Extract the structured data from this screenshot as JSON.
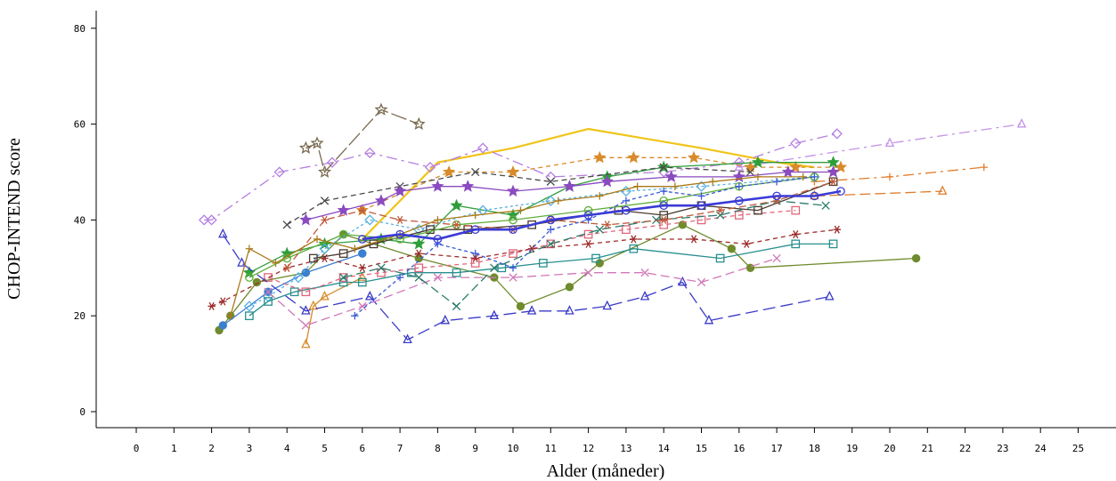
{
  "chart_data": {
    "type": "line",
    "title": "",
    "xlabel": "Alder (måneder)",
    "ylabel": "CHOP-INTEND score",
    "xlim": [
      -1,
      26
    ],
    "ylim": [
      -3,
      83
    ],
    "xticks": [
      0,
      1,
      2,
      3,
      4,
      5,
      6,
      7,
      8,
      9,
      10,
      11,
      12,
      13,
      14,
      15,
      16,
      17,
      18,
      19,
      20,
      21,
      22,
      23,
      24,
      25
    ],
    "yticks": [
      0,
      20,
      40,
      60,
      80
    ],
    "grid": false,
    "legend": "none",
    "mean_line": {
      "color": "#3b3bd6",
      "x": [
        6.0,
        7.0,
        8.0,
        9.0,
        10.0,
        11.0,
        12.0,
        13.0,
        14.0,
        15.0,
        16.0,
        17.0,
        18.0,
        18.7
      ],
      "y": [
        36,
        37,
        36,
        38,
        38,
        40,
        41,
        42,
        43,
        43,
        44,
        45,
        45,
        46
      ]
    },
    "series": [
      {
        "color": "#f0c419",
        "marker": "none",
        "dash": "",
        "x": [
          6.0,
          8.0,
          10.0,
          12.0,
          15.0,
          17.0,
          18.0
        ],
        "y": [
          36,
          52,
          55,
          59,
          55,
          52,
          51
        ]
      },
      {
        "color": "#b47ee0",
        "marker": "diamond",
        "dash": "12,5,3,5",
        "x": [
          1.8,
          2.0,
          3.8,
          5.2,
          6.2,
          7.8,
          9.2,
          11.0,
          14.0,
          16.0,
          17.5,
          18.6
        ],
        "y": [
          40,
          40,
          50,
          52,
          54,
          51,
          55,
          49,
          50,
          52,
          56,
          58
        ]
      },
      {
        "color": "#c493e8",
        "marker": "tri-up",
        "dash": "12,5,3,5",
        "x": [
          16.0,
          20.0,
          23.5
        ],
        "y": [
          51,
          56,
          60
        ]
      },
      {
        "color": "#7a6a50",
        "marker": "star-open",
        "dash": "18,4",
        "x": [
          4.5,
          4.8,
          5.0,
          6.5,
          7.5
        ],
        "y": [
          55,
          56,
          50,
          63,
          60
        ]
      },
      {
        "color": "#d98a2a",
        "marker": "star-filled",
        "dash": "5,4",
        "x": [
          6.0,
          8.3,
          10.0,
          12.3,
          13.2,
          14.8,
          16.3,
          17.5,
          18.7
        ],
        "y": [
          42,
          50,
          50,
          53,
          53,
          53,
          51,
          51,
          51
        ]
      },
      {
        "color": "#d98a2a",
        "marker": "tri-up",
        "dash": "",
        "x": [
          4.5,
          4.7,
          5.0,
          6.0
        ],
        "y": [
          14,
          22,
          24,
          28
        ]
      },
      {
        "color": "#e07b2a",
        "marker": "plus",
        "dash": "12,5,3,5",
        "x": [
          18.0,
          20.0,
          22.5
        ],
        "y": [
          48,
          49,
          51
        ]
      },
      {
        "color": "#e07b2a",
        "marker": "tri-up",
        "dash": "12,5",
        "x": [
          18.0,
          21.4
        ],
        "y": [
          45,
          46
        ]
      },
      {
        "color": "#2f9e3a",
        "marker": "star-filled",
        "dash": "",
        "x": [
          3.0,
          4.0,
          5.0,
          6.5,
          7.5,
          8.5,
          10.0,
          11.5,
          12.5,
          14.0,
          16.5,
          18.5
        ],
        "y": [
          29,
          33,
          35,
          36,
          35,
          43,
          41,
          47,
          49,
          51,
          52,
          52
        ]
      },
      {
        "color": "#6f8b2d",
        "marker": "circle-filled",
        "dash": "",
        "x": [
          2.2,
          2.5,
          3.2,
          4.5,
          5.5,
          7.5,
          9.5,
          10.2,
          11.5,
          12.3,
          14.5,
          15.8,
          16.3,
          20.7
        ],
        "y": [
          17,
          20,
          27,
          29,
          37,
          32,
          28,
          22,
          26,
          31,
          39,
          34,
          30,
          32
        ]
      },
      {
        "color": "#4a4a4a",
        "marker": "x",
        "dash": "6,4",
        "x": [
          4.0,
          5.0,
          7.0,
          9.0,
          11.0,
          14.0,
          16.3
        ],
        "y": [
          39,
          44,
          47,
          50,
          48,
          51,
          50
        ]
      },
      {
        "color": "#3a7fd0",
        "marker": "circle-filled",
        "dash": "",
        "x": [
          2.3,
          3.5,
          4.5,
          6.0
        ],
        "y": [
          18,
          25,
          29,
          33
        ]
      },
      {
        "color": "#56b0e0",
        "marker": "diamond",
        "dash": "3,3",
        "x": [
          3.0,
          3.5,
          4.3,
          5.0,
          6.2,
          7.5,
          9.2,
          11.0,
          13.0,
          15.0,
          18.0
        ],
        "y": [
          22,
          24,
          28,
          34,
          40,
          38,
          42,
          44,
          46,
          47,
          49
        ]
      },
      {
        "color": "#2a8f8f",
        "marker": "square",
        "dash": "",
        "x": [
          3.0,
          3.5,
          4.2,
          5.5,
          6.0,
          7.3,
          8.5,
          9.7,
          10.8,
          12.2,
          13.2,
          15.5,
          17.5,
          18.5
        ],
        "y": [
          20,
          23,
          25,
          27,
          27,
          29,
          29,
          30,
          31,
          32,
          34,
          32,
          35,
          35
        ]
      },
      {
        "color": "#e0667a",
        "marker": "square",
        "dash": "5,4",
        "x": [
          3.5,
          4.5,
          5.5,
          6.5,
          7.5,
          9.0,
          10.0,
          11.0,
          12.0,
          13.0,
          14.0,
          15.0,
          16.0,
          17.5
        ],
        "y": [
          28,
          25,
          28,
          29,
          30,
          31,
          33,
          35,
          37,
          38,
          39,
          40,
          41,
          42
        ]
      },
      {
        "color": "#9e2b2b",
        "marker": "star-asterisk",
        "dash": "5,4",
        "x": [
          2.0,
          2.3,
          4.0,
          5.0,
          6.0,
          7.5,
          9.0,
          10.5,
          12.0,
          13.2,
          14.8,
          16.2,
          17.5,
          18.6
        ],
        "y": [
          22,
          23,
          30,
          32,
          30,
          33,
          32,
          34,
          35,
          36,
          36,
          35,
          37,
          38
        ]
      },
      {
        "color": "#3a3ac8",
        "marker": "tri-up",
        "dash": "14,6",
        "x": [
          2.3,
          2.8,
          4.5,
          6.2,
          7.2,
          8.2,
          9.5,
          10.5,
          11.5,
          12.5,
          13.5,
          14.5,
          15.2,
          18.4
        ],
        "y": [
          37,
          31,
          21,
          24,
          15,
          19,
          20,
          21,
          21,
          22,
          24,
          27,
          19,
          24
        ]
      },
      {
        "color": "#d078b8",
        "marker": "x",
        "dash": "10,5",
        "x": [
          3.5,
          4.5,
          6.0,
          8.0,
          10.0,
          12.0,
          13.5,
          15.0,
          17.0
        ],
        "y": [
          25,
          18,
          22,
          28,
          28,
          29,
          29,
          27,
          32
        ]
      },
      {
        "color": "#4a3a30",
        "marker": "square",
        "dash": "",
        "x": [
          4.7,
          5.5,
          6.3,
          7.8,
          8.8,
          10.5,
          12.8,
          14.0,
          15.0,
          16.5,
          18.5
        ],
        "y": [
          32,
          33,
          35,
          38,
          38,
          39,
          42,
          41,
          43,
          42,
          48
        ]
      },
      {
        "color": "#2a7a6a",
        "marker": "x",
        "dash": "10,5",
        "x": [
          5.5,
          6.5,
          7.5,
          8.5,
          9.5,
          11.0,
          12.3,
          13.8,
          15.5,
          17.0,
          18.3
        ],
        "y": [
          28,
          30,
          28,
          22,
          30,
          35,
          38,
          40,
          41,
          44,
          43
        ]
      },
      {
        "color": "#8a4ac0",
        "marker": "star-filled",
        "dash": "",
        "x": [
          4.5,
          5.5,
          6.5,
          7.0,
          8.0,
          8.8,
          10.0,
          11.5,
          12.5,
          14.2,
          16.0,
          17.3,
          18.5
        ],
        "y": [
          40,
          42,
          44,
          46,
          47,
          47,
          46,
          47,
          48,
          49,
          49,
          50,
          50
        ]
      },
      {
        "color": "#5fae3a",
        "marker": "circle-open",
        "dash": "",
        "x": [
          3.0,
          4.0,
          5.5,
          7.0,
          8.5,
          10.0,
          12.0,
          14.0,
          16.0,
          18.0
        ],
        "y": [
          28,
          32,
          37,
          36,
          39,
          40,
          42,
          44,
          47,
          49
        ]
      },
      {
        "color": "#c05a3a",
        "marker": "star-asterisk",
        "dash": "8,4",
        "x": [
          4.0,
          5.0,
          6.0,
          7.0,
          8.5,
          10.0,
          11.0,
          12.5,
          14.0,
          15.5,
          17.0,
          18.5
        ],
        "y": [
          30,
          40,
          42,
          40,
          39,
          38,
          40,
          39,
          40,
          42,
          44,
          48
        ]
      },
      {
        "color": "#aa7a1a",
        "marker": "plus",
        "dash": "",
        "x": [
          2.5,
          3.0,
          3.7,
          4.8,
          5.8,
          7.0,
          8.0,
          9.0,
          10.2,
          11.2,
          12.3,
          13.3,
          14.3,
          15.3,
          16.5,
          17.7
        ],
        "y": [
          20,
          34,
          31,
          36,
          34,
          37,
          40,
          41,
          42,
          44,
          45,
          47,
          47,
          48,
          49,
          49
        ]
      },
      {
        "color": "#3a5ad6",
        "marker": "plus",
        "dash": "4,3",
        "x": [
          5.8,
          7.0,
          8.0,
          9.0,
          10.0,
          11.0,
          12.0,
          13.0,
          14.0,
          15.0,
          16.0,
          17.0,
          18.0
        ],
        "y": [
          20,
          28,
          35,
          33,
          30,
          38,
          40,
          44,
          46,
          45,
          47,
          48,
          49
        ]
      }
    ]
  }
}
